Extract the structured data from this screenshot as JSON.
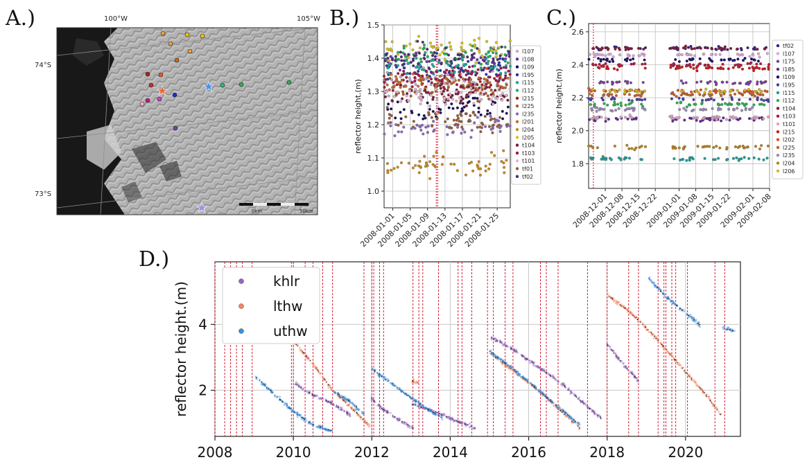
{
  "panel_labels": {
    "a": "A.)",
    "b": "B.)",
    "c": "C.)",
    "d": "D.)"
  },
  "map": {
    "lon_labels": [
      "100°W",
      "105°W"
    ],
    "lat_labels": [
      "74°S",
      "73°S"
    ],
    "scalebar_labels": [
      "0km",
      "50km"
    ],
    "colors": {
      "bg": "#5e5e5e",
      "ice": "#b9b9b9",
      "ocean": "#121212"
    },
    "markers": [
      {
        "color": "#e8a33a"
      },
      {
        "color": "#f2c200"
      },
      {
        "color": "#f2c200"
      },
      {
        "color": "#e8a33a"
      },
      {
        "color": "#e8a33a"
      },
      {
        "color": "#c8651b"
      },
      {
        "color": "#b0201d"
      },
      {
        "color": "#e05a2a"
      },
      {
        "color": "#cc2a2a"
      },
      {
        "color": "#1b2fcc"
      },
      {
        "color": "#c71585"
      },
      {
        "color": "#d13ec6"
      },
      {
        "color": "#ffb0c8"
      },
      {
        "color": "#7b3fa0"
      },
      {
        "color": "#1ebc8c"
      },
      {
        "color": "#2ab04a"
      },
      {
        "color": "#2ab04a"
      }
    ],
    "stars": [
      {
        "color": "#4a8ff0"
      },
      {
        "color": "#e8693a"
      },
      {
        "color": "#a58ce8"
      }
    ]
  },
  "chart_data": [
    {
      "panel": "B.)",
      "type": "scatter",
      "ylabel": "reflector height.(m)",
      "xlabel": "",
      "ylim": [
        0.95,
        1.5
      ],
      "yticks": [
        1.0,
        1.1,
        1.2,
        1.3,
        1.4,
        1.5
      ],
      "xlim": [
        "2007-12-30",
        "2008-01-28"
      ],
      "xticks": [
        "2008-01-01",
        "2008-01-05",
        "2008-01-09",
        "2008-01-13",
        "2008-01-17",
        "2008-01-21",
        "2008-01-25"
      ],
      "grid": true,
      "legend_placement": "right",
      "vlines": [
        "2008-01-11",
        "2008-01-11"
      ],
      "series": [
        {
          "name": "l107",
          "color": "#c3a9c4",
          "values": [
            1.33,
            1.33
          ]
        },
        {
          "name": "l108",
          "color": "#6a2f9e",
          "values": [
            1.39,
            1.39
          ]
        },
        {
          "name": "l109",
          "color": "#1a0d5c",
          "values": [
            1.25,
            1.25
          ]
        },
        {
          "name": "l195",
          "color": "#2233a8",
          "values": [
            1.37,
            1.37
          ]
        },
        {
          "name": "l115",
          "color": "#1aa89a",
          "values": [
            1.37,
            1.37
          ]
        },
        {
          "name": "l112",
          "color": "#20ae5c",
          "values": [
            1.41,
            1.41
          ]
        },
        {
          "name": "l215",
          "color": "#a21d24",
          "values": [
            1.32,
            1.32
          ]
        },
        {
          "name": "l225",
          "color": "#b15a2b",
          "values": [
            1.31,
            1.31
          ]
        },
        {
          "name": "l235",
          "color": "#8b6bb8",
          "values": [
            1.19,
            1.19
          ]
        },
        {
          "name": "l201",
          "color": "#c76a2a",
          "values": [
            1.33,
            1.33
          ]
        },
        {
          "name": "l204",
          "color": "#c98b1a",
          "values": [
            1.08,
            1.08
          ]
        },
        {
          "name": "l205",
          "color": "#d9c21a",
          "values": [
            1.43,
            1.43
          ]
        },
        {
          "name": "t104",
          "color": "#7a1b3a",
          "values": [
            1.29,
            1.29
          ]
        },
        {
          "name": "t103",
          "color": "#a4114e",
          "values": [
            1.35,
            1.35
          ]
        },
        {
          "name": "t101",
          "color": "#e3b5d2",
          "values": [
            1.29,
            1.29
          ]
        },
        {
          "name": "tf01",
          "color": "#9e5a33",
          "values": [
            1.21,
            1.21
          ]
        },
        {
          "name": "tf02",
          "color": "#4a2a78",
          "values": [
            1.4,
            1.4
          ]
        }
      ]
    },
    {
      "panel": "C.)",
      "type": "scatter",
      "ylabel": "reflector height.(m)",
      "xlabel": "",
      "ylim": [
        1.65,
        2.65
      ],
      "yticks": [
        1.8,
        2.0,
        2.2,
        2.4,
        2.6
      ],
      "xlim": [
        "2008-11-24",
        "2009-02-08"
      ],
      "xticks": [
        "2008-12-01",
        "2008-12-08",
        "2008-12-15",
        "2008-12-22",
        "2009-01-01",
        "2009-01-08",
        "2009-01-15",
        "2009-01-22",
        "2009-02-01",
        "2009-02-08"
      ],
      "grid": true,
      "legend_placement": "right",
      "vlines": [
        "2008-11-26"
      ],
      "series": [
        {
          "name": "tf02",
          "color": "#3a1a7a",
          "values": [
            2.5,
            2.5
          ]
        },
        {
          "name": "l107",
          "color": "#d8a8d8",
          "values": [
            2.46,
            2.46
          ]
        },
        {
          "name": "l175",
          "color": "#7b3f9e",
          "values": [
            2.29,
            2.29
          ]
        },
        {
          "name": "l185",
          "color": "#5c2a8e",
          "values": [
            2.07,
            2.07
          ]
        },
        {
          "name": "l109",
          "color": "#1a0d6c",
          "values": [
            2.43,
            2.43
          ]
        },
        {
          "name": "l195",
          "color": "#4a3aae",
          "values": [
            2.19,
            2.19
          ]
        },
        {
          "name": "l115",
          "color": "#1a9e9a",
          "values": [
            1.83,
            1.83
          ]
        },
        {
          "name": "l112",
          "color": "#2ab04a",
          "values": [
            2.16,
            2.16
          ]
        },
        {
          "name": "t104",
          "color": "#8a1530",
          "values": [
            2.5,
            2.5
          ]
        },
        {
          "name": "t103",
          "color": "#b21540",
          "values": [
            2.4,
            2.4
          ]
        },
        {
          "name": "t101",
          "color": "#e0a0c8",
          "values": [
            2.08,
            2.08
          ]
        },
        {
          "name": "l215",
          "color": "#c81a1a",
          "values": [
            2.38,
            2.38
          ]
        },
        {
          "name": "l202",
          "color": "#e0501a",
          "values": [
            2.24,
            2.24
          ]
        },
        {
          "name": "l225",
          "color": "#c0602a",
          "values": [
            2.22,
            2.22
          ]
        },
        {
          "name": "l235",
          "color": "#9a8ab8",
          "values": [
            2.13,
            2.13
          ]
        },
        {
          "name": "l204",
          "color": "#b8801a",
          "values": [
            1.9,
            1.9
          ]
        },
        {
          "name": "l206",
          "color": "#d9b81a",
          "values": [
            2.24,
            2.24
          ]
        }
      ]
    },
    {
      "panel": "D.)",
      "type": "scatter",
      "ylabel": "reflector height.(m)",
      "xlabel": "",
      "xlim": [
        2008,
        2021.4
      ],
      "xticks": [
        2008,
        2010,
        2012,
        2014,
        2016,
        2018,
        2020
      ],
      "xtick_labels": [
        "2008",
        "2010",
        "2012",
        "2014",
        "2016",
        "2018",
        "2020"
      ],
      "ylim": [
        0.6,
        5.9
      ],
      "yticks": [
        2,
        4
      ],
      "ytick_labels": [
        "2",
        "4"
      ],
      "grid": true,
      "legend_placement": "top-left",
      "series": [
        {
          "name": "khlr",
          "color": "#9467bd",
          "segments": [
            {
              "x": [
                2010.05,
                2010.5,
                2011.0,
                2011.45
              ],
              "y": [
                2.2,
                1.85,
                1.6,
                1.25
              ]
            },
            {
              "x": [
                2011.95,
                2012.3,
                2012.7,
                2013.05
              ],
              "y": [
                1.8,
                1.4,
                1.1,
                0.85
              ]
            },
            {
              "x": [
                2013.0,
                2013.6,
                2014.2,
                2014.65
              ],
              "y": [
                1.6,
                1.35,
                1.05,
                0.85
              ]
            },
            {
              "x": [
                2015.05,
                2015.6,
                2016.2,
                2016.8,
                2017.4,
                2017.85
              ],
              "y": [
                3.6,
                3.25,
                2.75,
                2.25,
                1.6,
                1.15
              ]
            },
            {
              "x": [
                2018.0,
                2018.4,
                2018.8
              ],
              "y": [
                3.4,
                2.8,
                2.3
              ]
            }
          ]
        },
        {
          "name": "lthw",
          "color": "#f4845f",
          "segments": [
            {
              "x": [
                2010.0,
                2010.5,
                2011.0,
                2011.5,
                2011.95
              ],
              "y": [
                3.5,
                2.8,
                2.0,
                1.45,
                0.9
              ]
            },
            {
              "x": [
                2013.0,
                2013.2
              ],
              "y": [
                2.3,
                2.2
              ]
            },
            {
              "x": [
                2015.05,
                2015.6,
                2016.2,
                2016.8,
                2017.3
              ],
              "y": [
                3.1,
                2.6,
                2.05,
                1.4,
                0.85
              ]
            },
            {
              "x": [
                2018.0,
                2018.5,
                2019.0,
                2019.5,
                2020.0,
                2020.5,
                2020.9
              ],
              "y": [
                4.9,
                4.45,
                3.9,
                3.25,
                2.55,
                1.9,
                1.25
              ]
            }
          ]
        },
        {
          "name": "uthw",
          "color": "#3a8fde",
          "segments": [
            {
              "x": [
                2009.0,
                2009.5,
                2010.0,
                2010.5,
                2011.0
              ],
              "y": [
                2.45,
                1.9,
                1.35,
                0.95,
                0.75
              ]
            },
            {
              "x": [
                2011.05,
                2011.4,
                2011.8
              ],
              "y": [
                1.95,
                1.7,
                1.3
              ]
            },
            {
              "x": [
                2012.0,
                2012.4,
                2012.9,
                2013.4,
                2013.8
              ],
              "y": [
                2.65,
                2.3,
                1.85,
                1.45,
                1.15
              ]
            },
            {
              "x": [
                2015.0,
                2015.6,
                2016.2,
                2016.8,
                2017.3
              ],
              "y": [
                3.2,
                2.65,
                2.05,
                1.45,
                0.95
              ]
            },
            {
              "x": [
                2019.05,
                2019.5,
                2020.0,
                2020.4
              ],
              "y": [
                5.4,
                4.85,
                4.35,
                3.95
              ]
            },
            {
              "x": [
                2020.95,
                2021.25
              ],
              "y": [
                3.9,
                3.8
              ]
            }
          ]
        }
      ],
      "vlines": [
        2008.0,
        2008.25,
        2008.4,
        2008.55,
        2008.7,
        2008.95,
        2009.95,
        2010.0,
        2010.3,
        2010.5,
        2010.75,
        2011.0,
        2011.8,
        2012.0,
        2012.05,
        2012.2,
        2012.3,
        2013.05,
        2013.2,
        2013.3,
        2013.7,
        2014.2,
        2014.3,
        2014.55,
        2014.95,
        2015.1,
        2015.4,
        2015.6,
        2016.3,
        2016.45,
        2016.75,
        2017.5,
        2018.0,
        2018.55,
        2018.8,
        2019.3,
        2019.45,
        2019.5,
        2019.65,
        2019.75,
        2020.05,
        2020.75,
        2021.0
      ]
    }
  ]
}
